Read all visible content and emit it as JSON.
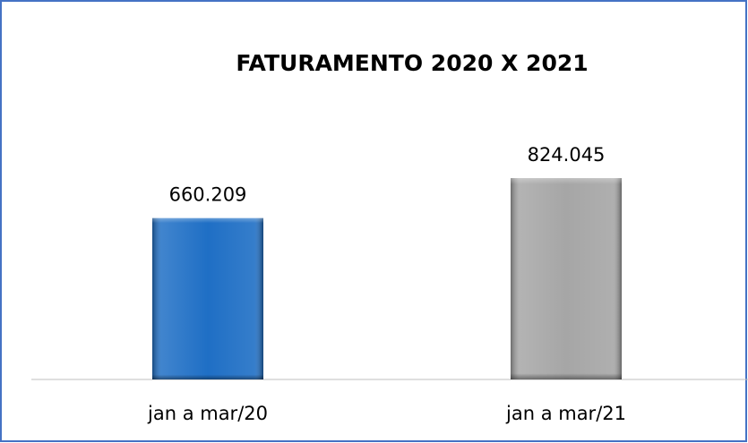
{
  "chart_data": {
    "type": "bar",
    "title": "FATURAMENTO 2020 X 2021",
    "categories": [
      "jan a mar/20",
      "jan a mar/21"
    ],
    "values": [
      660209,
      824045
    ],
    "value_labels": [
      "660.209",
      "824.045"
    ],
    "colors": [
      "#1f6fc5",
      "#a6a6a6"
    ]
  }
}
